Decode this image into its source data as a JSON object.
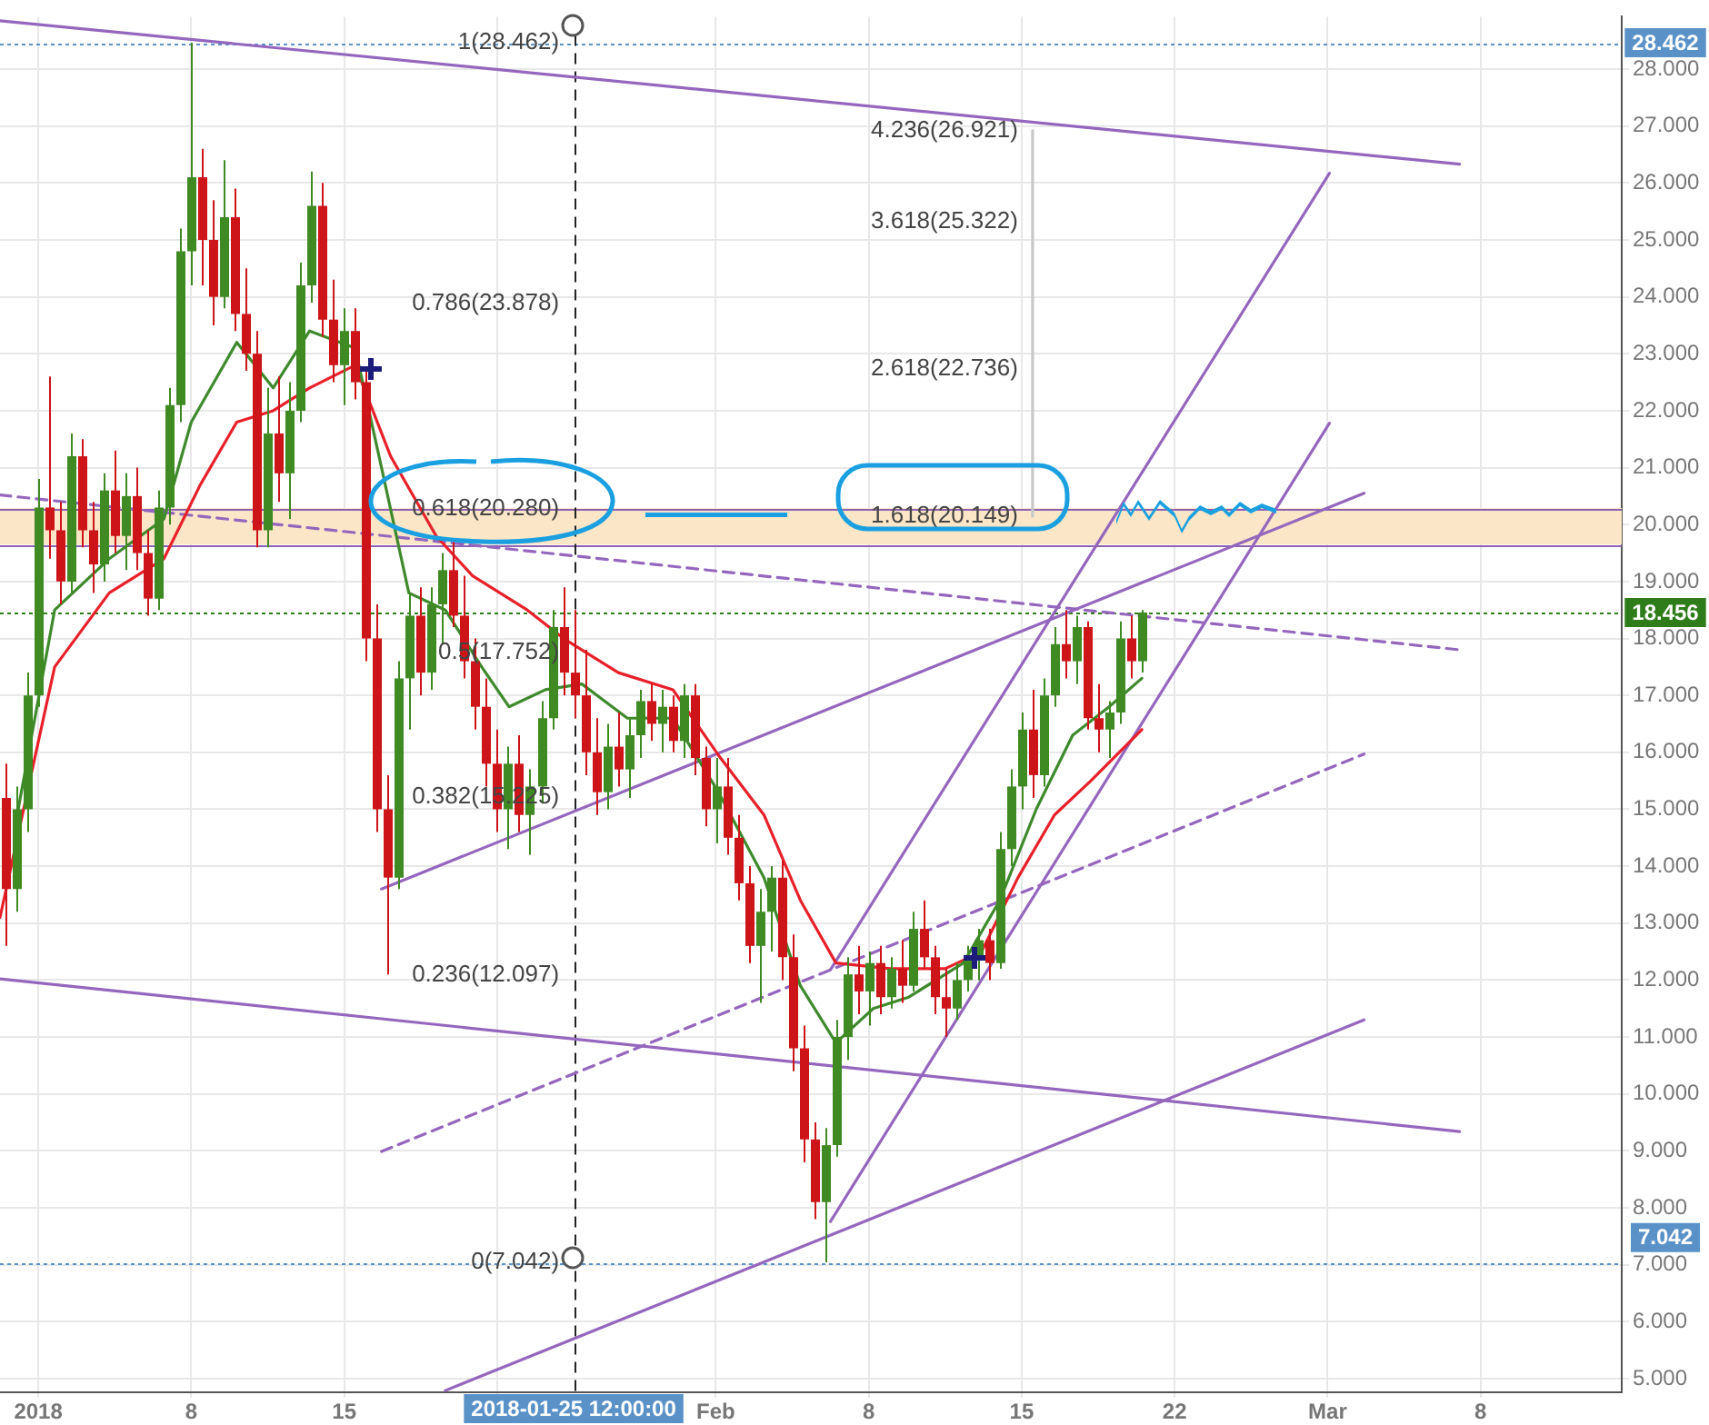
{
  "chart_data": {
    "type": "candlestick",
    "x": [
      "2017-12-30T12:00",
      "2017-12-31T00:00",
      "2017-12-31T12:00",
      "2018-01-01T00:00",
      "2018-01-01T12:00",
      "2018-01-02T00:00",
      "2018-01-02T12:00",
      "2018-01-03T00:00",
      "2018-01-03T12:00",
      "2018-01-04T00:00",
      "2018-01-04T12:00",
      "2018-01-05T00:00",
      "2018-01-05T12:00",
      "2018-01-06T00:00",
      "2018-01-06T12:00",
      "2018-01-07T00:00",
      "2018-01-07T12:00",
      "2018-01-08T00:00",
      "2018-01-08T12:00",
      "2018-01-09T00:00",
      "2018-01-09T12:00",
      "2018-01-10T00:00",
      "2018-01-10T12:00",
      "2018-01-11T00:00",
      "2018-01-11T12:00",
      "2018-01-12T00:00",
      "2018-01-12T12:00",
      "2018-01-13T00:00",
      "2018-01-13T12:00",
      "2018-01-14T00:00",
      "2018-01-14T12:00",
      "2018-01-15T00:00",
      "2018-01-15T12:00",
      "2018-01-16T00:00",
      "2018-01-16T12:00",
      "2018-01-17T00:00",
      "2018-01-17T12:00",
      "2018-01-18T00:00",
      "2018-01-18T12:00",
      "2018-01-19T00:00",
      "2018-01-19T12:00",
      "2018-01-20T00:00",
      "2018-01-20T12:00",
      "2018-01-21T00:00",
      "2018-01-21T12:00",
      "2018-01-22T00:00",
      "2018-01-22T12:00",
      "2018-01-23T00:00",
      "2018-01-23T12:00",
      "2018-01-24T00:00",
      "2018-01-24T12:00",
      "2018-01-25T00:00",
      "2018-01-25T12:00",
      "2018-01-26T00:00",
      "2018-01-26T12:00",
      "2018-01-27T00:00",
      "2018-01-27T12:00",
      "2018-01-28T00:00",
      "2018-01-28T12:00",
      "2018-01-29T00:00",
      "2018-01-29T12:00",
      "2018-01-30T00:00",
      "2018-01-30T12:00",
      "2018-01-31T00:00",
      "2018-01-31T12:00",
      "2018-02-01T00:00",
      "2018-02-01T12:00",
      "2018-02-02T00:00",
      "2018-02-02T12:00",
      "2018-02-03T00:00",
      "2018-02-03T12:00",
      "2018-02-04T00:00",
      "2018-02-04T12:00",
      "2018-02-05T00:00",
      "2018-02-05T12:00",
      "2018-02-06T00:00",
      "2018-02-06T12:00",
      "2018-02-07T00:00",
      "2018-02-07T12:00",
      "2018-02-08T00:00",
      "2018-02-08T12:00",
      "2018-02-09T00:00",
      "2018-02-09T12:00",
      "2018-02-10T00:00",
      "2018-02-10T12:00",
      "2018-02-11T00:00",
      "2018-02-11T12:00",
      "2018-02-12T00:00",
      "2018-02-12T12:00",
      "2018-02-13T00:00",
      "2018-02-13T12:00",
      "2018-02-14T00:00",
      "2018-02-14T12:00",
      "2018-02-15T00:00",
      "2018-02-15T12:00",
      "2018-02-16T00:00",
      "2018-02-16T12:00",
      "2018-02-17T00:00",
      "2018-02-17T12:00",
      "2018-02-18T00:00",
      "2018-02-18T12:00",
      "2018-02-19T00:00",
      "2018-02-19T12:00",
      "2018-02-20T00:00",
      "2018-02-20T12:00"
    ],
    "ohlc": [
      [
        15.2,
        15.8,
        12.6,
        13.6
      ],
      [
        13.6,
        15.4,
        13.2,
        15.0
      ],
      [
        15.0,
        17.4,
        14.6,
        17.0
      ],
      [
        17.0,
        20.8,
        16.8,
        20.3
      ],
      [
        20.3,
        22.6,
        19.4,
        19.9
      ],
      [
        19.9,
        20.4,
        18.6,
        19.0
      ],
      [
        19.0,
        21.6,
        18.8,
        21.2
      ],
      [
        21.2,
        21.5,
        19.6,
        19.9
      ],
      [
        19.9,
        20.4,
        18.8,
        19.3
      ],
      [
        19.3,
        20.9,
        19.0,
        20.6
      ],
      [
        20.6,
        21.3,
        19.5,
        19.8
      ],
      [
        19.8,
        20.9,
        19.2,
        20.5
      ],
      [
        20.5,
        21.0,
        19.2,
        19.5
      ],
      [
        19.5,
        19.9,
        18.4,
        18.7
      ],
      [
        18.7,
        20.6,
        18.5,
        20.3
      ],
      [
        20.3,
        22.4,
        20.0,
        22.1
      ],
      [
        22.1,
        25.2,
        21.8,
        24.8
      ],
      [
        24.8,
        28.462,
        24.2,
        26.1
      ],
      [
        26.1,
        26.6,
        24.2,
        25.0
      ],
      [
        25.0,
        25.7,
        23.5,
        24.0
      ],
      [
        24.0,
        26.4,
        23.8,
        25.4
      ],
      [
        25.4,
        25.9,
        23.4,
        23.7
      ],
      [
        23.7,
        24.5,
        22.7,
        23.0
      ],
      [
        23.0,
        23.4,
        19.6,
        19.9
      ],
      [
        19.9,
        22.4,
        19.6,
        21.6
      ],
      [
        21.6,
        22.6,
        20.4,
        20.9
      ],
      [
        20.9,
        22.5,
        20.1,
        22.0
      ],
      [
        22.0,
        24.6,
        21.8,
        24.2
      ],
      [
        24.2,
        26.2,
        23.9,
        25.6
      ],
      [
        25.6,
        26.0,
        23.3,
        23.6
      ],
      [
        23.6,
        24.3,
        22.5,
        22.8
      ],
      [
        22.8,
        23.8,
        22.1,
        23.4
      ],
      [
        23.4,
        23.8,
        22.2,
        22.5
      ],
      [
        22.5,
        22.7,
        17.6,
        18.0
      ],
      [
        18.0,
        18.6,
        14.6,
        15.0
      ],
      [
        15.0,
        15.6,
        12.1,
        13.8
      ],
      [
        13.8,
        17.6,
        13.6,
        17.3
      ],
      [
        17.3,
        18.8,
        16.4,
        18.4
      ],
      [
        18.4,
        18.9,
        17.0,
        17.4
      ],
      [
        17.4,
        18.9,
        17.1,
        18.6
      ],
      [
        18.6,
        19.5,
        17.9,
        19.2
      ],
      [
        19.2,
        19.75,
        18.2,
        18.4
      ],
      [
        18.4,
        19.1,
        17.3,
        17.6
      ],
      [
        17.6,
        18.0,
        16.4,
        16.8
      ],
      [
        16.8,
        17.3,
        15.4,
        15.8
      ],
      [
        15.8,
        16.4,
        14.6,
        15.0
      ],
      [
        15.0,
        16.1,
        14.3,
        15.8
      ],
      [
        15.8,
        16.3,
        14.6,
        14.9
      ],
      [
        14.9,
        15.7,
        14.2,
        15.4
      ],
      [
        15.4,
        16.9,
        15.1,
        16.6
      ],
      [
        16.6,
        18.5,
        16.4,
        18.2
      ],
      [
        18.2,
        18.9,
        17.0,
        17.4
      ],
      [
        17.4,
        18.5,
        16.6,
        17.0
      ],
      [
        17.0,
        17.8,
        15.6,
        16.0
      ],
      [
        16.0,
        16.6,
        14.9,
        15.3
      ],
      [
        15.3,
        16.5,
        15.0,
        16.1
      ],
      [
        16.1,
        16.7,
        15.4,
        15.7
      ],
      [
        15.7,
        16.6,
        15.2,
        16.3
      ],
      [
        16.3,
        17.1,
        15.9,
        16.9
      ],
      [
        16.9,
        17.2,
        16.2,
        16.5
      ],
      [
        16.5,
        17.1,
        16.0,
        16.8
      ],
      [
        16.8,
        17.0,
        16.0,
        16.2
      ],
      [
        16.2,
        17.2,
        15.9,
        17.0
      ],
      [
        17.0,
        17.2,
        15.6,
        15.9
      ],
      [
        15.9,
        16.1,
        14.7,
        15.0
      ],
      [
        15.0,
        15.9,
        14.4,
        15.4
      ],
      [
        15.4,
        15.9,
        14.2,
        14.5
      ],
      [
        14.5,
        14.9,
        13.4,
        13.7
      ],
      [
        13.7,
        14.0,
        12.3,
        12.6
      ],
      [
        12.6,
        13.6,
        11.6,
        13.2
      ],
      [
        13.2,
        14.0,
        12.5,
        13.8
      ],
      [
        13.8,
        14.1,
        12.0,
        12.4
      ],
      [
        12.4,
        12.8,
        10.4,
        10.8
      ],
      [
        10.8,
        11.2,
        8.8,
        9.2
      ],
      [
        9.2,
        9.5,
        7.8,
        8.1
      ],
      [
        8.1,
        9.4,
        7.042,
        9.1
      ],
      [
        9.1,
        11.3,
        8.9,
        11.0
      ],
      [
        11.0,
        12.4,
        10.6,
        12.1
      ],
      [
        12.1,
        12.6,
        11.4,
        11.8
      ],
      [
        11.8,
        12.5,
        11.2,
        12.3
      ],
      [
        12.3,
        12.6,
        11.4,
        11.7
      ],
      [
        11.7,
        12.4,
        11.5,
        12.2
      ],
      [
        12.2,
        12.7,
        11.6,
        11.9
      ],
      [
        11.9,
        13.2,
        11.8,
        12.9
      ],
      [
        12.9,
        13.4,
        12.2,
        12.4
      ],
      [
        12.4,
        12.6,
        11.4,
        11.7
      ],
      [
        11.7,
        12.2,
        11.0,
        11.5
      ],
      [
        11.5,
        12.3,
        11.3,
        12.0
      ],
      [
        12.0,
        12.6,
        11.8,
        12.4
      ],
      [
        12.4,
        12.9,
        12.0,
        12.7
      ],
      [
        12.7,
        12.9,
        12.0,
        12.3
      ],
      [
        12.3,
        14.6,
        12.2,
        14.3
      ],
      [
        14.3,
        15.7,
        14.0,
        15.4
      ],
      [
        15.4,
        16.7,
        15.0,
        16.4
      ],
      [
        16.4,
        17.1,
        15.2,
        15.6
      ],
      [
        15.6,
        17.3,
        15.4,
        17.0
      ],
      [
        17.0,
        18.2,
        16.8,
        17.9
      ],
      [
        17.9,
        18.5,
        17.3,
        17.6
      ],
      [
        17.6,
        18.4,
        17.2,
        18.2
      ],
      [
        18.2,
        18.3,
        16.4,
        16.6
      ],
      [
        16.6,
        17.2,
        16.0,
        16.4
      ],
      [
        16.4,
        16.9,
        15.9,
        16.7
      ],
      [
        16.7,
        18.3,
        16.5,
        18.0
      ],
      [
        18.0,
        18.4,
        17.3,
        17.6
      ],
      [
        17.6,
        18.5,
        17.4,
        18.456
      ]
    ],
    "series": [
      {
        "type": "line",
        "color": "#3e8a2c",
        "x": [
          "2017-12-31T02:00",
          "2018-01-01T18:00",
          "2018-01-04T06:00",
          "2018-01-06T18:00",
          "2018-01-08T00:00",
          "2018-01-10T02:00",
          "2018-01-11T18:00",
          "2018-01-13T10:00",
          "2018-01-15T12:00",
          "2018-01-16T17:00",
          "2018-01-17T23:00",
          "2018-01-19T15:00",
          "2018-01-21T07:00",
          "2018-01-22T13:00",
          "2018-01-24T05:00",
          "2018-01-25T21:00",
          "2018-01-27T23:00",
          "2018-01-30T01:00",
          "2018-02-01T03:00",
          "2018-02-03T05:00",
          "2018-02-04T21:00",
          "2018-02-06T12:00",
          "2018-02-08T05:00",
          "2018-02-09T20:00",
          "2018-02-12T08:00",
          "2018-02-14T00:00",
          "2018-02-15T16:00",
          "2018-02-17T08:00",
          "2018-02-19T00:00",
          "2018-02-20T12:00"
        ],
        "values": [
          15.0,
          18.5,
          19.4,
          20.1,
          21.8,
          23.2,
          22.4,
          23.4,
          23.1,
          21.0,
          18.8,
          18.5,
          17.5,
          16.8,
          17.1,
          17.2,
          16.6,
          16.6,
          15.3,
          13.8,
          11.9,
          10.9,
          11.5,
          11.7,
          12.3,
          13.4,
          15.0,
          16.3,
          16.8,
          17.3
        ]
      },
      {
        "type": "line",
        "color": "#e8202a",
        "x": [
          "2017-12-30T06:00",
          "2018-01-01T18:00",
          "2018-01-04T06:00",
          "2018-01-06T18:00",
          "2018-01-08T10:00",
          "2018-01-10T02:00",
          "2018-01-11T18:00",
          "2018-01-13T10:00",
          "2018-01-15T12:00",
          "2018-01-17T03:00",
          "2018-01-19T05:00",
          "2018-01-20T21:00",
          "2018-01-23T09:00",
          "2018-01-25T01:00",
          "2018-01-27T13:00",
          "2018-01-30T01:00",
          "2018-02-01T03:00",
          "2018-02-03T05:00",
          "2018-02-04T21:00",
          "2018-02-06T12:00",
          "2018-02-09T00:00",
          "2018-02-11T12:00",
          "2018-02-13T04:00",
          "2018-02-14T20:00",
          "2018-02-16T12:00",
          "2018-02-18T04:00",
          "2018-02-20T12:00"
        ],
        "values": [
          13.1,
          17.5,
          18.8,
          19.4,
          20.7,
          21.8,
          22.0,
          22.4,
          22.8,
          21.2,
          19.8,
          19.1,
          18.5,
          18.0,
          17.4,
          17.1,
          15.95,
          14.9,
          13.4,
          12.3,
          12.2,
          12.2,
          12.5,
          13.8,
          14.9,
          15.5,
          16.4
        ]
      },
      {
        "type": "line",
        "color": "#9467bd",
        "x": [
          "2017-12-30T06:00",
          "2018-03-07T01:00"
        ],
        "values": [
          28.85,
          26.33
        ]
      },
      {
        "type": "line",
        "color": "#9467bd",
        "x": [
          "2017-12-30T06:00",
          "2018-03-07T01:00"
        ],
        "values": [
          12.02,
          9.34
        ]
      },
      {
        "type": "line",
        "color": "#9467bd",
        "x": [
          "2018-01-19T15:00",
          "2018-03-02T16:00"
        ],
        "values": [
          4.79,
          11.3
        ]
      },
      {
        "type": "line",
        "color": "#9467bd",
        "x": [
          "2018-01-16T17:00",
          "2018-03-02T16:00"
        ],
        "values": [
          13.6,
          20.55
        ]
      },
      {
        "type": "line",
        "color": "#9467bd",
        "line_style": "dashed",
        "x": [
          "2018-01-16T17:00",
          "2018-03-02T16:00"
        ],
        "values": [
          8.99,
          15.97
        ]
      },
      {
        "type": "line",
        "color": "#9467bd",
        "line_style": "dashed",
        "x": [
          "2017-12-30T06:00",
          "2018-03-07T01:00"
        ],
        "values": [
          20.52,
          17.8
        ]
      },
      {
        "type": "line",
        "color": "#9467bd",
        "x": [
          "2018-02-06T06:00",
          "2018-03-01T02:00"
        ],
        "values": [
          12.18,
          26.17
        ]
      },
      {
        "type": "line",
        "color": "#9467bd",
        "x": [
          "2018-02-06T06:00",
          "2018-03-01T02:00"
        ],
        "values": [
          7.76,
          21.78
        ]
      },
      {
        "type": "line",
        "color": "#c8c8c8",
        "x": [
          "2018-02-15T12:00",
          "2018-02-15T12:00"
        ],
        "values": [
          26.921,
          20.149
        ]
      }
    ],
    "annotations": [
      {
        "text": "1(28.462)",
        "x": "2018-01-25T12:00",
        "y": 28.462
      },
      {
        "text": "0.786(23.878)",
        "x": "2018-01-25T12:00",
        "y": 23.878
      },
      {
        "text": "0.618(20.280)",
        "x": "2018-01-25T12:00",
        "y": 20.28
      },
      {
        "text": "0.5(17.752)",
        "x": "2018-01-25T12:00",
        "y": 17.752
      },
      {
        "text": "0.382(15.225)",
        "x": "2018-01-25T12:00",
        "y": 15.225
      },
      {
        "text": "0.236(12.097)",
        "x": "2018-01-25T12:00",
        "y": 12.097
      },
      {
        "text": "0(7.042)",
        "x": "2018-01-25T12:00",
        "y": 7.042
      },
      {
        "text": "4.236(26.921)",
        "x": "2018-02-15T12:00",
        "y": 26.921
      },
      {
        "text": "3.618(25.322)",
        "x": "2018-02-15T12:00",
        "y": 25.322
      },
      {
        "text": "2.618(22.736)",
        "x": "2018-02-15T12:00",
        "y": 22.736
      },
      {
        "text": "1.618(20.149)",
        "x": "2018-02-15T12:00",
        "y": 20.149
      }
    ],
    "bands": [
      {
        "axis": "y",
        "from": 19.65,
        "to": 20.29,
        "color": "#fce6c8"
      }
    ],
    "ref_lines": [
      {
        "axis": "y",
        "value": 20.29,
        "color": "#8e63b3"
      },
      {
        "axis": "y",
        "value": 19.65,
        "color": "#8e63b3"
      },
      {
        "axis": "y",
        "value": 18.456,
        "label": "18.456",
        "color": "#2f7d1a",
        "line_style": "dotted"
      },
      {
        "axis": "y",
        "value": 28.462,
        "label": "28.462",
        "color": "#5a92c8",
        "line_style": "dotted"
      },
      {
        "axis": "y",
        "value": 7.042,
        "label": "7.042",
        "color": "#5a92c8",
        "line_style": "dotted"
      },
      {
        "axis": "x",
        "value": "2018-01-25T12:00",
        "label": "2018-01-25 12:00:00",
        "color": "#222222",
        "line_style": "dashed"
      }
    ],
    "xlim": [
      "2017-12-30T06:00",
      "2018-03-14T11:00"
    ],
    "xticks": [
      {
        "value": "2018-01-01",
        "label": "2018"
      },
      {
        "value": "2018-01-08",
        "label": "8"
      },
      {
        "value": "2018-01-15",
        "label": "15"
      },
      {
        "value": "2018-01-22",
        "label": null
      },
      {
        "value": "2018-02-01",
        "label": "Feb"
      },
      {
        "value": "2018-02-08",
        "label": "8"
      },
      {
        "value": "2018-02-15",
        "label": "15"
      },
      {
        "value": "2018-02-22",
        "label": "22"
      },
      {
        "value": "2018-03-01",
        "label": "Mar"
      },
      {
        "value": "2018-03-08",
        "label": "8"
      }
    ],
    "ylim": [
      4.76,
      28.92
    ],
    "yticks": [
      {
        "value": 5,
        "label": "5.000"
      },
      {
        "value": 6,
        "label": "6.000"
      },
      {
        "value": 7,
        "label": "7.000"
      },
      {
        "value": 8,
        "label": "8.000"
      },
      {
        "value": 9,
        "label": "9.000"
      },
      {
        "value": 10,
        "label": "10.000"
      },
      {
        "value": 11,
        "label": "11.000"
      },
      {
        "value": 12,
        "label": "12.000"
      },
      {
        "value": 13,
        "label": "13.000"
      },
      {
        "value": 14,
        "label": "14.000"
      },
      {
        "value": 15,
        "label": "15.000"
      },
      {
        "value": 16,
        "label": "16.000"
      },
      {
        "value": 17,
        "label": "17.000"
      },
      {
        "value": 18,
        "label": "18.000"
      },
      {
        "value": 19,
        "label": "19.000"
      },
      {
        "value": 20,
        "label": "20.000"
      },
      {
        "value": 21,
        "label": "21.000"
      },
      {
        "value": 22,
        "label": "22.000"
      },
      {
        "value": 23,
        "label": "23.000"
      },
      {
        "value": 24,
        "label": "24.000"
      },
      {
        "value": 25,
        "label": "25.000"
      },
      {
        "value": 26,
        "label": "26.000"
      },
      {
        "value": 27,
        "label": "27.000"
      },
      {
        "value": 28,
        "label": "28.000"
      }
    ],
    "grid": true,
    "legend": false,
    "marker": "none",
    "line_style": "solid"
  }
}
